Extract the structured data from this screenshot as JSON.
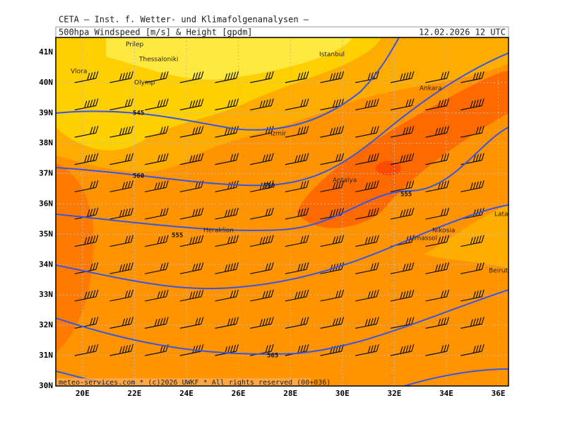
{
  "header": {
    "line1": "CETA — Inst. f. Wetter- und Klimafolgenanalysen —",
    "title": "500hpa Windspeed [m/s] & Height [gpdm]",
    "datetime": "12.02.2026 12 UTC"
  },
  "map": {
    "lat_labels": [
      "41N",
      "40N",
      "39N",
      "38N",
      "37N",
      "36N",
      "35N",
      "34N",
      "33N",
      "32N",
      "31N",
      "30N"
    ],
    "lon_labels": [
      "20E",
      "22E",
      "24E",
      "26E",
      "28E",
      "30E",
      "32E",
      "34E",
      "36E"
    ],
    "places": [
      "Prilep",
      "Thessaloniki",
      "Vlora",
      "Olymp",
      "Istanbul",
      "Ankara",
      "Izmir",
      "Antalya",
      "Heraklion",
      "Nikosia",
      "Limassol",
      "Latakia",
      "Beirut"
    ],
    "contour_labels": [
      "545",
      "550",
      "555",
      "555",
      "560",
      "565"
    ]
  },
  "footer": "meteo-services.com * (c)2026 UWKF * All rights reserved (00+036)"
}
